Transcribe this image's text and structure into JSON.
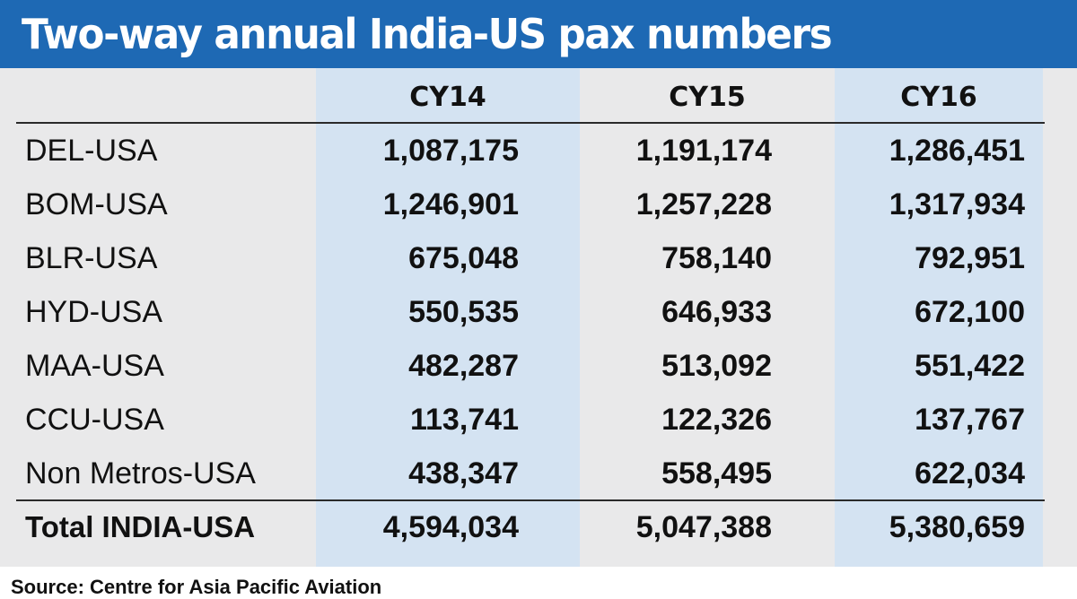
{
  "title": "Two-way annual India-US pax numbers",
  "source": "Source: Centre for Asia Pacific Aviation",
  "colors": {
    "title_bg": "#1e69b4",
    "table_bg": "#e9e9ea",
    "column_band": "#d4e3f2"
  },
  "chart_data": {
    "type": "table",
    "title": "Two-way annual India-US pax numbers",
    "columns": [
      "",
      "CY14",
      "CY15",
      "CY16"
    ],
    "rows": [
      {
        "label": "DEL-USA",
        "values": [
          "1,087,175",
          "1,191,174",
          "1,286,451"
        ]
      },
      {
        "label": "BOM-USA",
        "values": [
          "1,246,901",
          "1,257,228",
          "1,317,934"
        ]
      },
      {
        "label": "BLR-USA",
        "values": [
          "675,048",
          "758,140",
          "792,951"
        ]
      },
      {
        "label": "HYD-USA",
        "values": [
          "550,535",
          "646,933",
          "672,100"
        ]
      },
      {
        "label": "MAA-USA",
        "values": [
          "482,287",
          "513,092",
          "551,422"
        ]
      },
      {
        "label": "CCU-USA",
        "values": [
          "113,741",
          "122,326",
          "137,767"
        ]
      },
      {
        "label": "Non Metros-USA",
        "values": [
          "438,347",
          "558,495",
          "622,034"
        ]
      },
      {
        "label": "Total INDIA-USA",
        "values": [
          "4,594,034",
          "5,047,388",
          "5,380,659"
        ]
      }
    ],
    "source": "Source: Centre for Asia Pacific Aviation"
  }
}
